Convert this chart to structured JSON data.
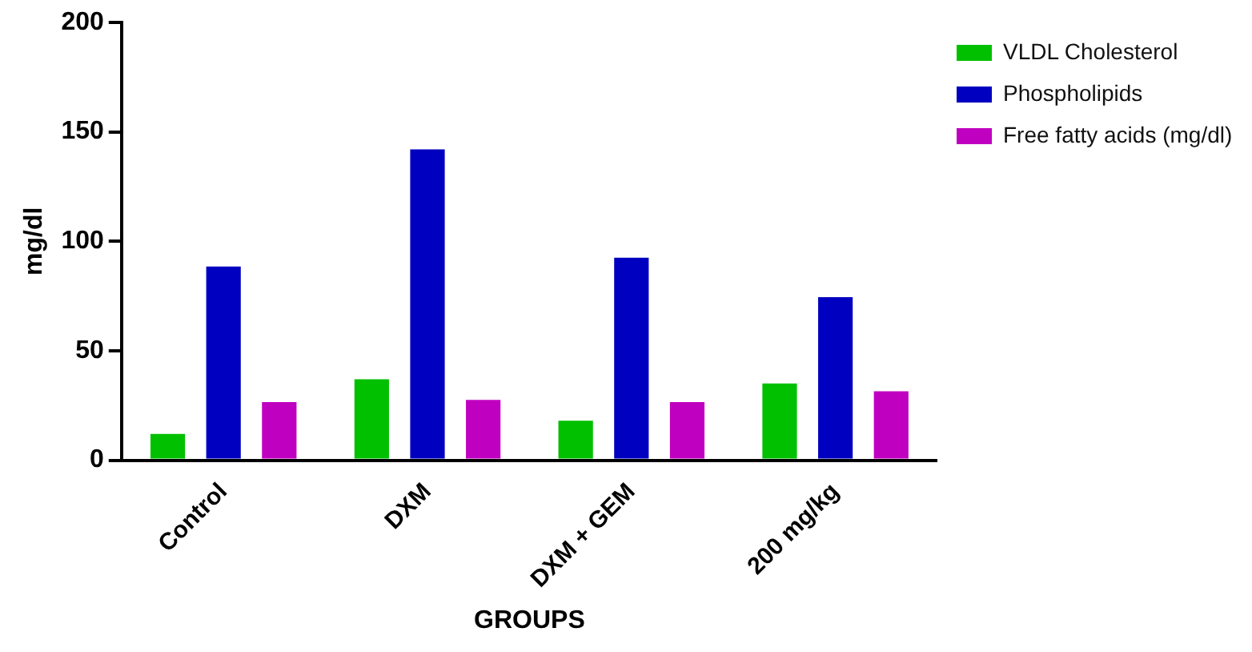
{
  "chart_data": {
    "type": "bar",
    "xlabel": "GROUPS",
    "ylabel": "mg/dl",
    "categories": [
      "Control",
      "DXM",
      "DXM + GEM",
      "200 mg/kg"
    ],
    "series": [
      {
        "name": "VLDL Cholesterol",
        "color": "#00c000",
        "values": [
          12,
          37,
          18,
          35
        ]
      },
      {
        "name": "Phospholipids",
        "color": "#0000c0",
        "values": [
          88.5,
          142,
          92.5,
          74.5
        ]
      },
      {
        "name": "Free fatty acids (mg/dl)",
        "color": "#c000c0",
        "values": [
          26.5,
          27.5,
          26.5,
          31.5
        ]
      }
    ],
    "ylim": [
      0,
      200
    ],
    "yticks": [
      0,
      50,
      100,
      150,
      200
    ],
    "grid": false,
    "legend": "top right"
  }
}
